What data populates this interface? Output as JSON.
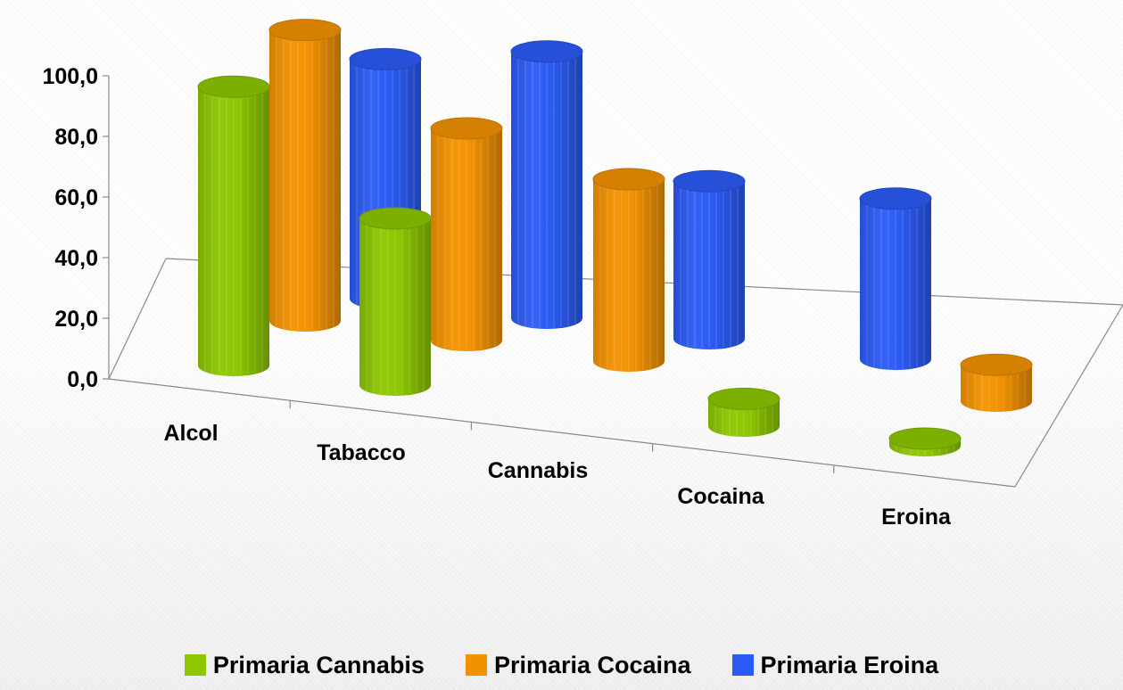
{
  "chart_data": {
    "type": "bar",
    "style": "3d-cylinder",
    "categories": [
      "Alcol",
      "Tabacco",
      "Cannabis",
      "Cocaina",
      "Eroina"
    ],
    "series": [
      {
        "name": "Primaria Cannabis",
        "color": "#8dc700",
        "values": [
          92.0,
          55.0,
          null,
          9.0,
          2.0
        ]
      },
      {
        "name": "Primaria Cocaina",
        "color": "#f39200",
        "values": [
          96.0,
          70.0,
          60.0,
          null,
          12.0
        ]
      },
      {
        "name": "Primaria Eroina",
        "color": "#2b5bf5",
        "values": [
          79.0,
          88.0,
          52.0,
          53.0,
          null
        ]
      }
    ],
    "y_ticks": [
      "0,0",
      "20,0",
      "40,0",
      "60,0",
      "80,0",
      "100,0"
    ],
    "ylim": [
      0,
      100
    ],
    "legend_position": "bottom",
    "grid": false
  }
}
